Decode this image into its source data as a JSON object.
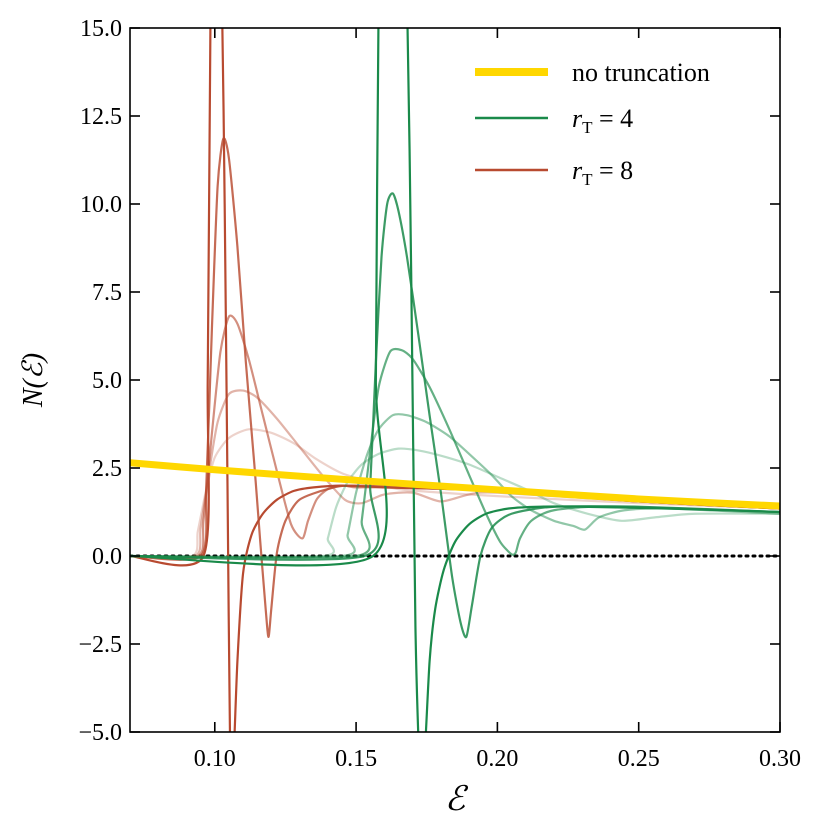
{
  "chart_data": {
    "type": "line",
    "title": "",
    "xlabel": "ℰ",
    "ylabel": "N(ℰ)",
    "xlim": [
      0.07,
      0.3
    ],
    "ylim": [
      -5.0,
      15.0
    ],
    "x_ticks": [
      0.1,
      0.15,
      0.2,
      0.25,
      0.3
    ],
    "x_tick_labels": [
      "0.10",
      "0.15",
      "0.20",
      "0.25",
      "0.30"
    ],
    "y_ticks": [
      -5.0,
      -2.5,
      0.0,
      2.5,
      5.0,
      7.5,
      10.0,
      12.5,
      15.0
    ],
    "y_tick_labels": [
      "−5.0",
      "−2.5",
      "0.0",
      "2.5",
      "5.0",
      "7.5",
      "10.0",
      "12.5",
      "15.0"
    ],
    "grid": false,
    "legend_position": "top-right",
    "legend": [
      {
        "label": "no truncation",
        "color": "#FFD700"
      },
      {
        "label": "r_T = 4",
        "main": "r",
        "sub": "T",
        "rest": " = 4",
        "color": "#1a8a4a"
      },
      {
        "label": "r_T = 8",
        "main": "r",
        "sub": "T",
        "rest": " = 8",
        "color": "#b84a30"
      }
    ],
    "series": [
      {
        "name": "no truncation",
        "color": "#FFD700",
        "opacity": 1,
        "x": [
          0.07,
          0.1,
          0.15,
          0.2,
          0.25,
          0.3
        ],
        "y": [
          2.65,
          2.45,
          2.15,
          1.88,
          1.62,
          1.42
        ]
      },
      {
        "name": "r_T = 8 (faint 1)",
        "color": "#b84a30",
        "opacity": 0.25,
        "x": [
          0.07,
          0.092,
          0.094,
          0.097,
          0.1,
          0.105,
          0.112,
          0.12,
          0.128,
          0.136,
          0.145,
          0.155,
          0.165,
          0.18,
          0.2,
          0.25,
          0.3
        ],
        "y": [
          0,
          0,
          0.7,
          1.9,
          2.8,
          3.35,
          3.6,
          3.5,
          3.2,
          2.75,
          2.35,
          2.1,
          1.9,
          1.8,
          1.7,
          1.5,
          1.35
        ]
      },
      {
        "name": "r_T = 8 (faint 2)",
        "color": "#b84a30",
        "opacity": 0.42,
        "x": [
          0.07,
          0.093,
          0.095,
          0.098,
          0.101,
          0.105,
          0.11,
          0.115,
          0.122,
          0.13,
          0.138,
          0.146,
          0.152,
          0.16,
          0.17,
          0.18,
          0.19,
          0.2,
          0.25,
          0.3
        ],
        "y": [
          0,
          0,
          0.8,
          2.4,
          3.8,
          4.6,
          4.7,
          4.5,
          3.9,
          3.1,
          2.3,
          1.6,
          1.5,
          1.75,
          1.8,
          1.55,
          1.75,
          1.8,
          1.55,
          1.35
        ]
      },
      {
        "name": "r_T = 8 (mid)",
        "color": "#b84a30",
        "opacity": 0.62,
        "x": [
          0.07,
          0.094,
          0.096,
          0.099,
          0.102,
          0.105,
          0.108,
          0.112,
          0.117,
          0.122,
          0.127,
          0.131,
          0.133,
          0.136,
          0.14,
          0.145,
          0.15,
          0.16,
          0.2,
          0.25,
          0.3
        ],
        "y": [
          0,
          0,
          1.0,
          3.5,
          5.8,
          6.8,
          6.6,
          5.6,
          4.0,
          2.4,
          0.9,
          0.5,
          1.0,
          1.6,
          1.9,
          2.0,
          1.95,
          1.95,
          1.85,
          1.55,
          1.35
        ]
      },
      {
        "name": "r_T = 8 (strong)",
        "color": "#b84a30",
        "opacity": 0.82,
        "x": [
          0.07,
          0.095,
          0.097,
          0.099,
          0.101,
          0.103,
          0.105,
          0.108,
          0.111,
          0.114,
          0.116,
          0.118,
          0.119,
          0.12,
          0.122,
          0.125,
          0.13,
          0.14,
          0.15,
          0.2,
          0.25,
          0.3
        ],
        "y": [
          0,
          0,
          2.0,
          6.5,
          10.5,
          11.85,
          11.3,
          8.8,
          5.5,
          2.6,
          0.5,
          -1.5,
          -2.3,
          -1.5,
          0.1,
          1.0,
          1.6,
          1.9,
          2.0,
          1.85,
          1.55,
          1.35
        ]
      },
      {
        "name": "r_T = 8",
        "color": "#b84a30",
        "opacity": 1,
        "x": [
          0.07,
          0.096,
          0.0975,
          0.0985,
          0.0995,
          0.1005,
          0.1015,
          0.1025,
          0.1035,
          0.1045,
          0.1055,
          0.1065,
          0.108,
          0.11,
          0.113,
          0.117,
          0.122,
          0.128,
          0.135,
          0.145,
          0.16,
          0.2,
          0.25,
          0.3
        ],
        "y": [
          0,
          0,
          5,
          15.5,
          16,
          16,
          16,
          16,
          10,
          2,
          -6,
          -6,
          -3,
          -0.5,
          0.6,
          1.2,
          1.6,
          1.85,
          1.95,
          2.0,
          1.95,
          1.85,
          1.55,
          1.35
        ]
      },
      {
        "name": "r_T = 4 (faint 1)",
        "color": "#1a8a4a",
        "opacity": 0.3,
        "x": [
          0.07,
          0.138,
          0.14,
          0.143,
          0.147,
          0.152,
          0.158,
          0.165,
          0.172,
          0.18,
          0.19,
          0.2,
          0.21,
          0.22,
          0.232,
          0.244,
          0.256,
          0.27,
          0.3
        ],
        "y": [
          0,
          0,
          0.5,
          1.4,
          2.1,
          2.6,
          2.9,
          3.05,
          3.0,
          2.85,
          2.6,
          2.25,
          1.9,
          1.5,
          1.2,
          1.0,
          1.1,
          1.2,
          1.2
        ]
      },
      {
        "name": "r_T = 4 (faint 2)",
        "color": "#1a8a4a",
        "opacity": 0.48,
        "x": [
          0.07,
          0.145,
          0.147,
          0.15,
          0.154,
          0.158,
          0.163,
          0.168,
          0.175,
          0.183,
          0.19,
          0.198,
          0.205,
          0.212,
          0.22,
          0.227,
          0.231,
          0.236,
          0.245,
          0.26,
          0.3
        ],
        "y": [
          0,
          0,
          0.6,
          1.8,
          2.9,
          3.6,
          4.0,
          4.0,
          3.8,
          3.4,
          2.9,
          2.3,
          1.7,
          1.3,
          1.0,
          0.85,
          0.75,
          1.1,
          1.3,
          1.35,
          1.2
        ]
      },
      {
        "name": "r_T = 4 (mid)",
        "color": "#1a8a4a",
        "opacity": 0.68,
        "x": [
          0.07,
          0.15,
          0.152,
          0.155,
          0.158,
          0.162,
          0.166,
          0.17,
          0.176,
          0.183,
          0.19,
          0.196,
          0.201,
          0.205,
          0.2065,
          0.208,
          0.212,
          0.22,
          0.24,
          0.3
        ],
        "y": [
          0,
          0,
          1.0,
          3.0,
          4.8,
          5.8,
          5.85,
          5.6,
          4.8,
          3.6,
          2.3,
          1.2,
          0.4,
          0.05,
          0.1,
          0.5,
          1.0,
          1.3,
          1.4,
          1.25
        ]
      },
      {
        "name": "r_T = 4 (strong)",
        "color": "#1a8a4a",
        "opacity": 0.85,
        "x": [
          0.07,
          0.153,
          0.155,
          0.157,
          0.159,
          0.161,
          0.163,
          0.165,
          0.168,
          0.172,
          0.176,
          0.18,
          0.184,
          0.187,
          0.189,
          0.191,
          0.194,
          0.198,
          0.205,
          0.22,
          0.25,
          0.3
        ],
        "y": [
          0,
          0,
          2.0,
          5.5,
          8.5,
          10.0,
          10.3,
          9.8,
          8.5,
          6.3,
          4.0,
          1.8,
          -0.6,
          -1.9,
          -2.3,
          -1.4,
          0.0,
          0.8,
          1.2,
          1.4,
          1.4,
          1.25
        ]
      },
      {
        "name": "r_T = 4",
        "color": "#1a8a4a",
        "opacity": 1,
        "x": [
          0.07,
          0.156,
          0.157,
          0.158,
          0.16,
          0.162,
          0.164,
          0.166,
          0.168,
          0.1695,
          0.171,
          0.1725,
          0.174,
          0.176,
          0.178,
          0.181,
          0.185,
          0.19,
          0.196,
          0.204,
          0.215,
          0.23,
          0.26,
          0.3
        ],
        "y": [
          0,
          0,
          5,
          16,
          16,
          16,
          16,
          16,
          16,
          8,
          -2,
          -6,
          -6,
          -3,
          -1.5,
          -0.4,
          0.4,
          0.9,
          1.2,
          1.35,
          1.4,
          1.4,
          1.35,
          1.25
        ]
      }
    ],
    "baseline": {
      "y": 0.0,
      "style": "dotted",
      "color": "#000000"
    }
  }
}
